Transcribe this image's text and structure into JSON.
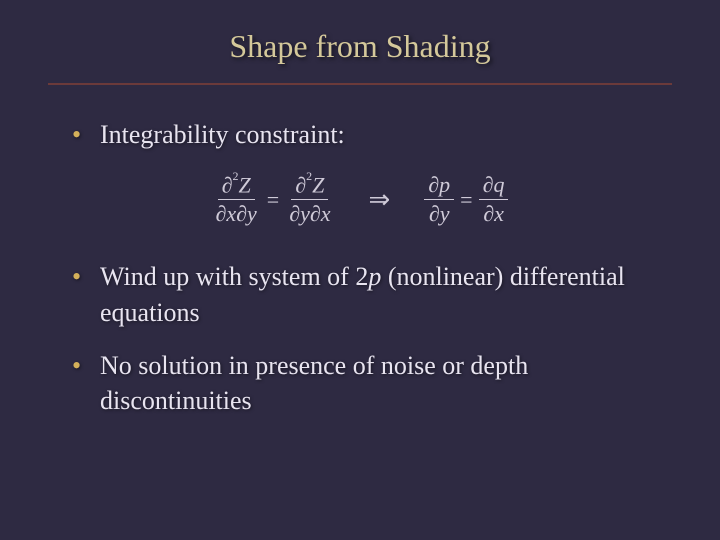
{
  "colors": {
    "background": "#2e2a42",
    "title_color": "#d4c89a",
    "bullet_color": "#d4b05a",
    "text_color": "#e8e4f0",
    "rule_color": "#6b3a3a",
    "equation_color": "#cfcad8"
  },
  "title": "Shape from Shading",
  "bullets": [
    {
      "text": "Integrability constraint:"
    },
    {
      "text_pre": "Wind up with system of 2",
      "italic": "p",
      "text_post": " (nonlinear) differential equations"
    },
    {
      "text": "No solution in presence of noise or depth discontinuities"
    }
  ],
  "equation": {
    "lhs": {
      "num": "∂²Z",
      "den": "∂x∂y"
    },
    "lhs2": {
      "num": "∂²Z",
      "den": "∂y∂x"
    },
    "arrow": "⇒",
    "rhs": {
      "num": "∂p",
      "den": "∂y"
    },
    "rhs2": {
      "num": "∂q",
      "den": "∂x"
    },
    "eq": "="
  },
  "typography": {
    "title_fontsize": 32,
    "body_fontsize": 26,
    "equation_fontsize": 22
  }
}
